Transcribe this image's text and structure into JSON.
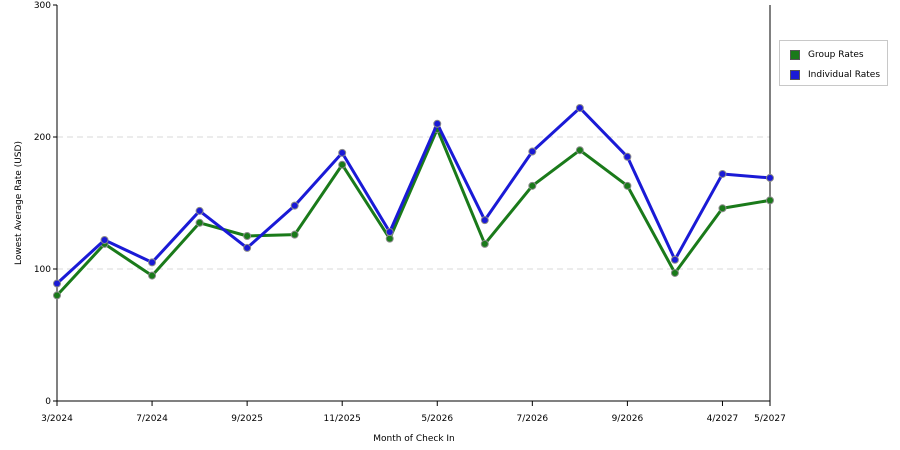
{
  "chart_data": {
    "type": "line",
    "title": "",
    "xlabel": "Month of Check In",
    "ylabel": "Lowest Average Rate (USD)",
    "ylim": [
      0,
      300
    ],
    "yticks": [
      0,
      100,
      200,
      300
    ],
    "x_tick_labels": [
      "3/2024",
      "7/2024",
      "9/2025",
      "11/2025",
      "5/2026",
      "7/2026",
      "9/2026",
      "4/2027",
      "5/2027"
    ],
    "grid": "horizontal-dashed",
    "legend_position": "right",
    "series": [
      {
        "name": "Group Rates",
        "color": "#1a7a1a",
        "values": [
          80,
          119,
          95,
          135,
          125,
          126,
          179,
          123,
          206,
          119,
          163,
          190,
          163,
          97,
          146,
          152
        ]
      },
      {
        "name": "Individual Rates",
        "color": "#1a1ad6",
        "values": [
          89,
          122,
          105,
          144,
          116,
          148,
          188,
          128,
          210,
          137,
          189,
          222,
          185,
          107,
          172,
          169
        ]
      }
    ]
  }
}
